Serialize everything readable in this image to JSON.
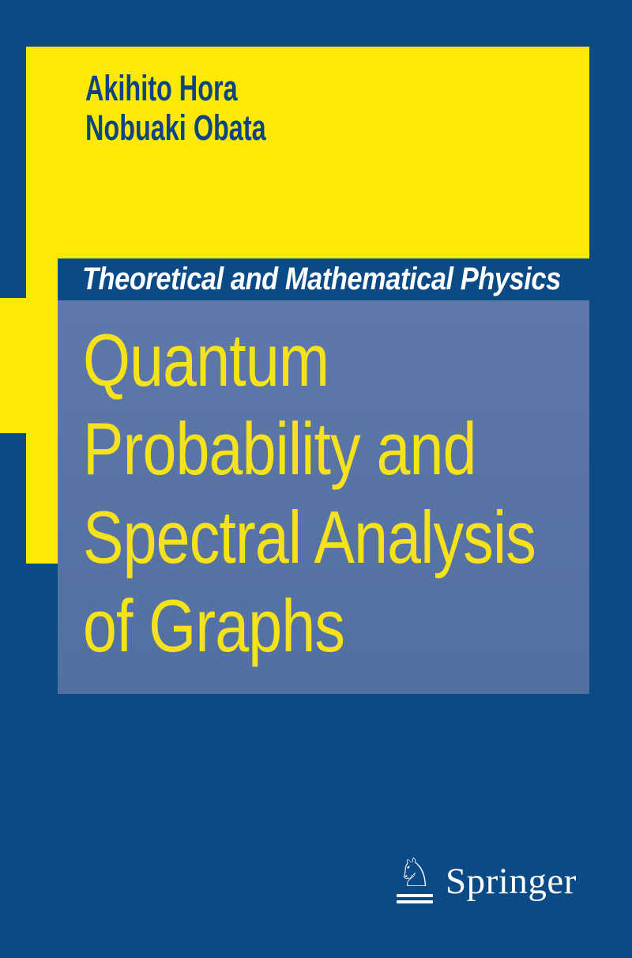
{
  "cover": {
    "authors": [
      "Akihito Hora",
      "Nobuaki Obata"
    ],
    "series": "Theoretical and Mathematical Physics",
    "title_lines": [
      "Quantum",
      "Probability and",
      "Spectral Analysis",
      "of Graphs"
    ],
    "publisher": "Springer",
    "logo": {
      "glyph": "♘",
      "name": "springer-horse-icon"
    },
    "colors": {
      "navy": "#0a4a87",
      "yellow": "#fde905",
      "slate-light": "#5e78a9",
      "slate-dark": "#5170a0",
      "title-yellow": "#f5e21d",
      "author-navy": "#0f4483",
      "white": "#ffffff"
    }
  }
}
